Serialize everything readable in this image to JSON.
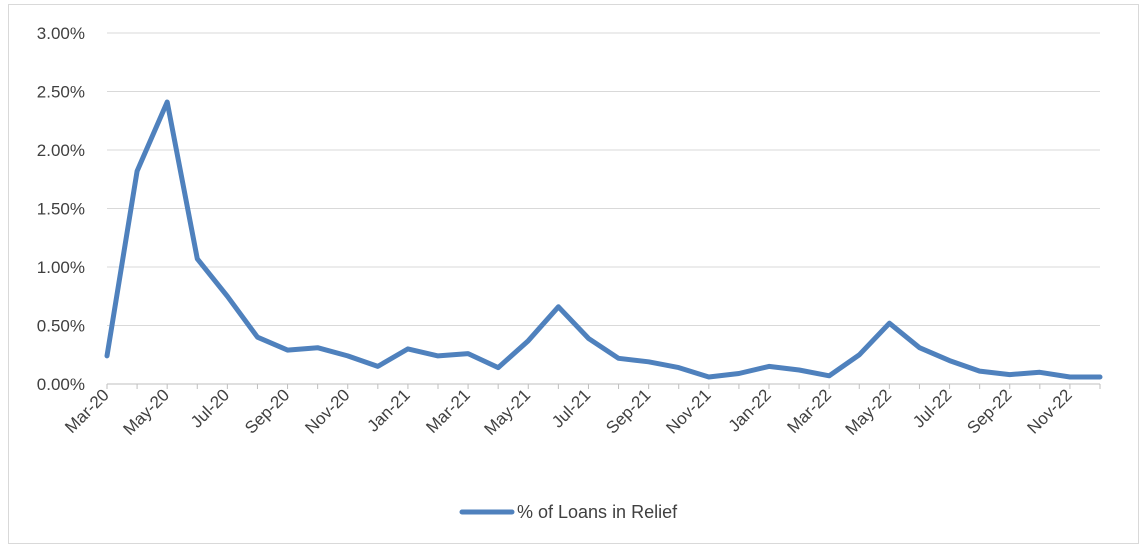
{
  "chart_data": {
    "type": "line",
    "title": "",
    "xlabel": "",
    "ylabel": "",
    "ylim": [
      0,
      0.03
    ],
    "y_ticks": [
      0,
      0.005,
      0.01,
      0.015,
      0.02,
      0.025,
      0.03
    ],
    "y_tick_labels": [
      "0.00%",
      "0.50%",
      "1.00%",
      "1.50%",
      "2.00%",
      "2.50%",
      "3.00%"
    ],
    "x_tick_labels": [
      "Mar-20",
      "May-20",
      "Jul-20",
      "Sep-20",
      "Nov-20",
      "Jan-21",
      "Mar-21",
      "May-21",
      "Jul-21",
      "Sep-21",
      "Nov-21",
      "Jan-22",
      "Mar-22",
      "May-22",
      "Jul-22",
      "Sep-22",
      "Nov-22"
    ],
    "grid": true,
    "legend_position": "bottom",
    "series": [
      {
        "name": "% of Loans in Relief",
        "color": "#4f81bd",
        "x": [
          "Mar-20",
          "Apr-20",
          "May-20",
          "Jun-20",
          "Jul-20",
          "Aug-20",
          "Sep-20",
          "Oct-20",
          "Nov-20",
          "Dec-20",
          "Jan-21",
          "Feb-21",
          "Mar-21",
          "Apr-21",
          "May-21",
          "Jun-21",
          "Jul-21",
          "Aug-21",
          "Sep-21",
          "Oct-21",
          "Nov-21",
          "Dec-21",
          "Jan-22",
          "Feb-22",
          "Mar-22",
          "Apr-22",
          "May-22",
          "Jun-22",
          "Jul-22",
          "Aug-22",
          "Sep-22",
          "Oct-22",
          "Nov-22",
          "Dec-22"
        ],
        "values": [
          0.0024,
          0.0182,
          0.0241,
          0.0107,
          0.0075,
          0.004,
          0.0029,
          0.0031,
          0.0024,
          0.0015,
          0.003,
          0.0024,
          0.0026,
          0.0014,
          0.0037,
          0.0066,
          0.0039,
          0.0022,
          0.0019,
          0.0014,
          0.0006,
          0.0009,
          0.0015,
          0.0012,
          0.0007,
          0.0025,
          0.0052,
          0.0031,
          0.002,
          0.0011,
          0.0008,
          0.001,
          0.0006,
          0.0006
        ]
      }
    ]
  }
}
